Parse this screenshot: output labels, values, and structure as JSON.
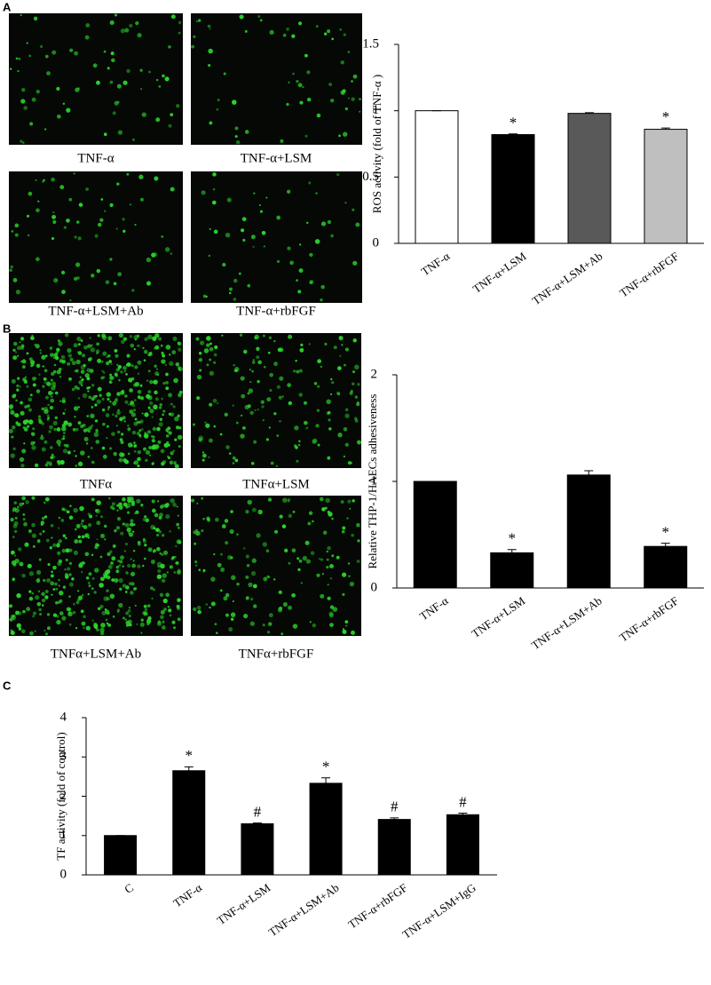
{
  "panels": [
    {
      "label": "A",
      "images": [
        "TNF-α",
        "TNF-α+LSM",
        "TNF-α+LSM+Ab",
        "TNF-α+rbFGF"
      ]
    },
    {
      "label": "B",
      "images": [
        "TNFα",
        "TNFα+LSM",
        "TNFα+LSM+Ab",
        "TNFα+rbFGF"
      ]
    },
    {
      "label": "C"
    }
  ],
  "chart_data": [
    {
      "type": "bar",
      "y_label": "ROS activity (fold of TNF-α )",
      "categories": [
        "TNF-α",
        "TNF-α+LSM",
        "TNF-α+LSM+Ab",
        "TNF-α+rbFGF"
      ],
      "values": [
        1.0,
        0.82,
        0.98,
        0.86
      ],
      "errors": [
        0,
        0.005,
        0.005,
        0.01
      ],
      "colors": [
        "#ffffff",
        "#000000",
        "#595959",
        "#bfbfbf"
      ],
      "annotations": [
        null,
        "*",
        null,
        "*"
      ],
      "ylim": [
        0,
        1.5
      ],
      "yticks": [
        0,
        0.5,
        1,
        1.5
      ]
    },
    {
      "type": "bar",
      "y_label": "Relative THP-1/HAECs adhesiveness",
      "categories": [
        "TNF-α",
        "TNF-α+LSM",
        "TNF-α+LSM+Ab",
        "TNF-α+rbFGF"
      ],
      "values": [
        1.0,
        0.33,
        1.06,
        0.39
      ],
      "errors": [
        0,
        0.03,
        0.04,
        0.03
      ],
      "colors": [
        "#000000",
        "#000000",
        "#000000",
        "#000000"
      ],
      "annotations": [
        null,
        "*",
        null,
        "*"
      ],
      "ylim": [
        0,
        2
      ],
      "yticks": [
        0,
        1,
        2
      ]
    },
    {
      "type": "bar",
      "y_label": "TF activity (fold of control)",
      "categories": [
        "C",
        "TNF-α",
        "TNF-α+LSM",
        "TNF-α+LSM+Ab",
        "TNF-α+rbFGF",
        "TNF-α+LSM+IgG"
      ],
      "values": [
        1.0,
        2.65,
        1.3,
        2.33,
        1.41,
        1.53
      ],
      "errors": [
        0,
        0.1,
        0.02,
        0.14,
        0.04,
        0.04
      ],
      "colors": [
        "#000000",
        "#000000",
        "#000000",
        "#000000",
        "#000000",
        "#000000"
      ],
      "annotations": [
        null,
        "*",
        "#",
        "*",
        "#",
        "#"
      ],
      "ylim": [
        0,
        4
      ],
      "yticks": [
        0,
        1,
        2,
        3,
        4
      ]
    }
  ]
}
